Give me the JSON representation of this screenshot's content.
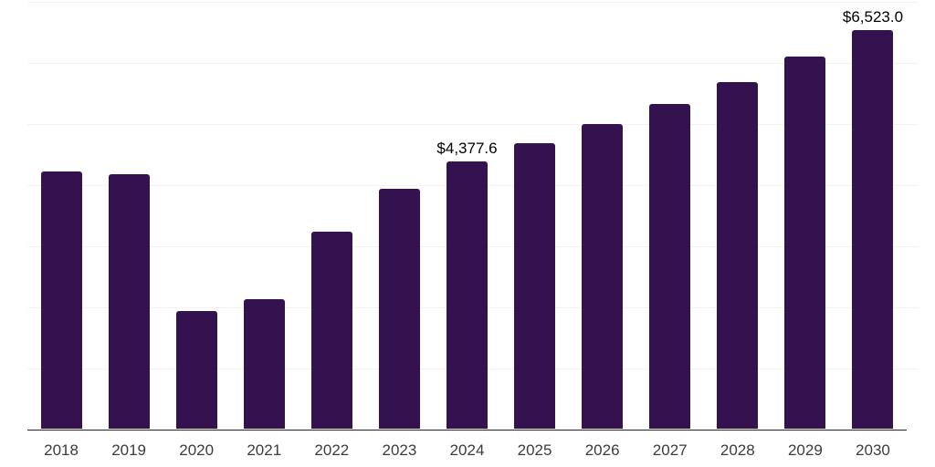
{
  "chart_data": {
    "type": "bar",
    "title": "",
    "xlabel": "",
    "ylabel": "",
    "categories": [
      "2018",
      "2019",
      "2020",
      "2021",
      "2022",
      "2023",
      "2024",
      "2025",
      "2026",
      "2027",
      "2028",
      "2029",
      "2030"
    ],
    "values": [
      4210,
      4170,
      1935,
      2130,
      3230,
      3930,
      4377.6,
      4675,
      4990,
      5315,
      5685,
      6090,
      6523.0
    ],
    "data_labels": [
      {
        "category": "2024",
        "text": "$4,377.6"
      },
      {
        "category": "2030",
        "text": "$6,523.0"
      }
    ],
    "ylim": [
      0,
      7000
    ],
    "gridline_step": 1000,
    "grid": true,
    "legend": false,
    "y_axis_labels_visible": false,
    "colors": {
      "bar": "#34114F",
      "gridline": "#F2F2F2",
      "axis_line": "#262626",
      "tick_label": "#3C3C3C",
      "data_label": "#000000",
      "background": "#FFFFFF"
    }
  }
}
